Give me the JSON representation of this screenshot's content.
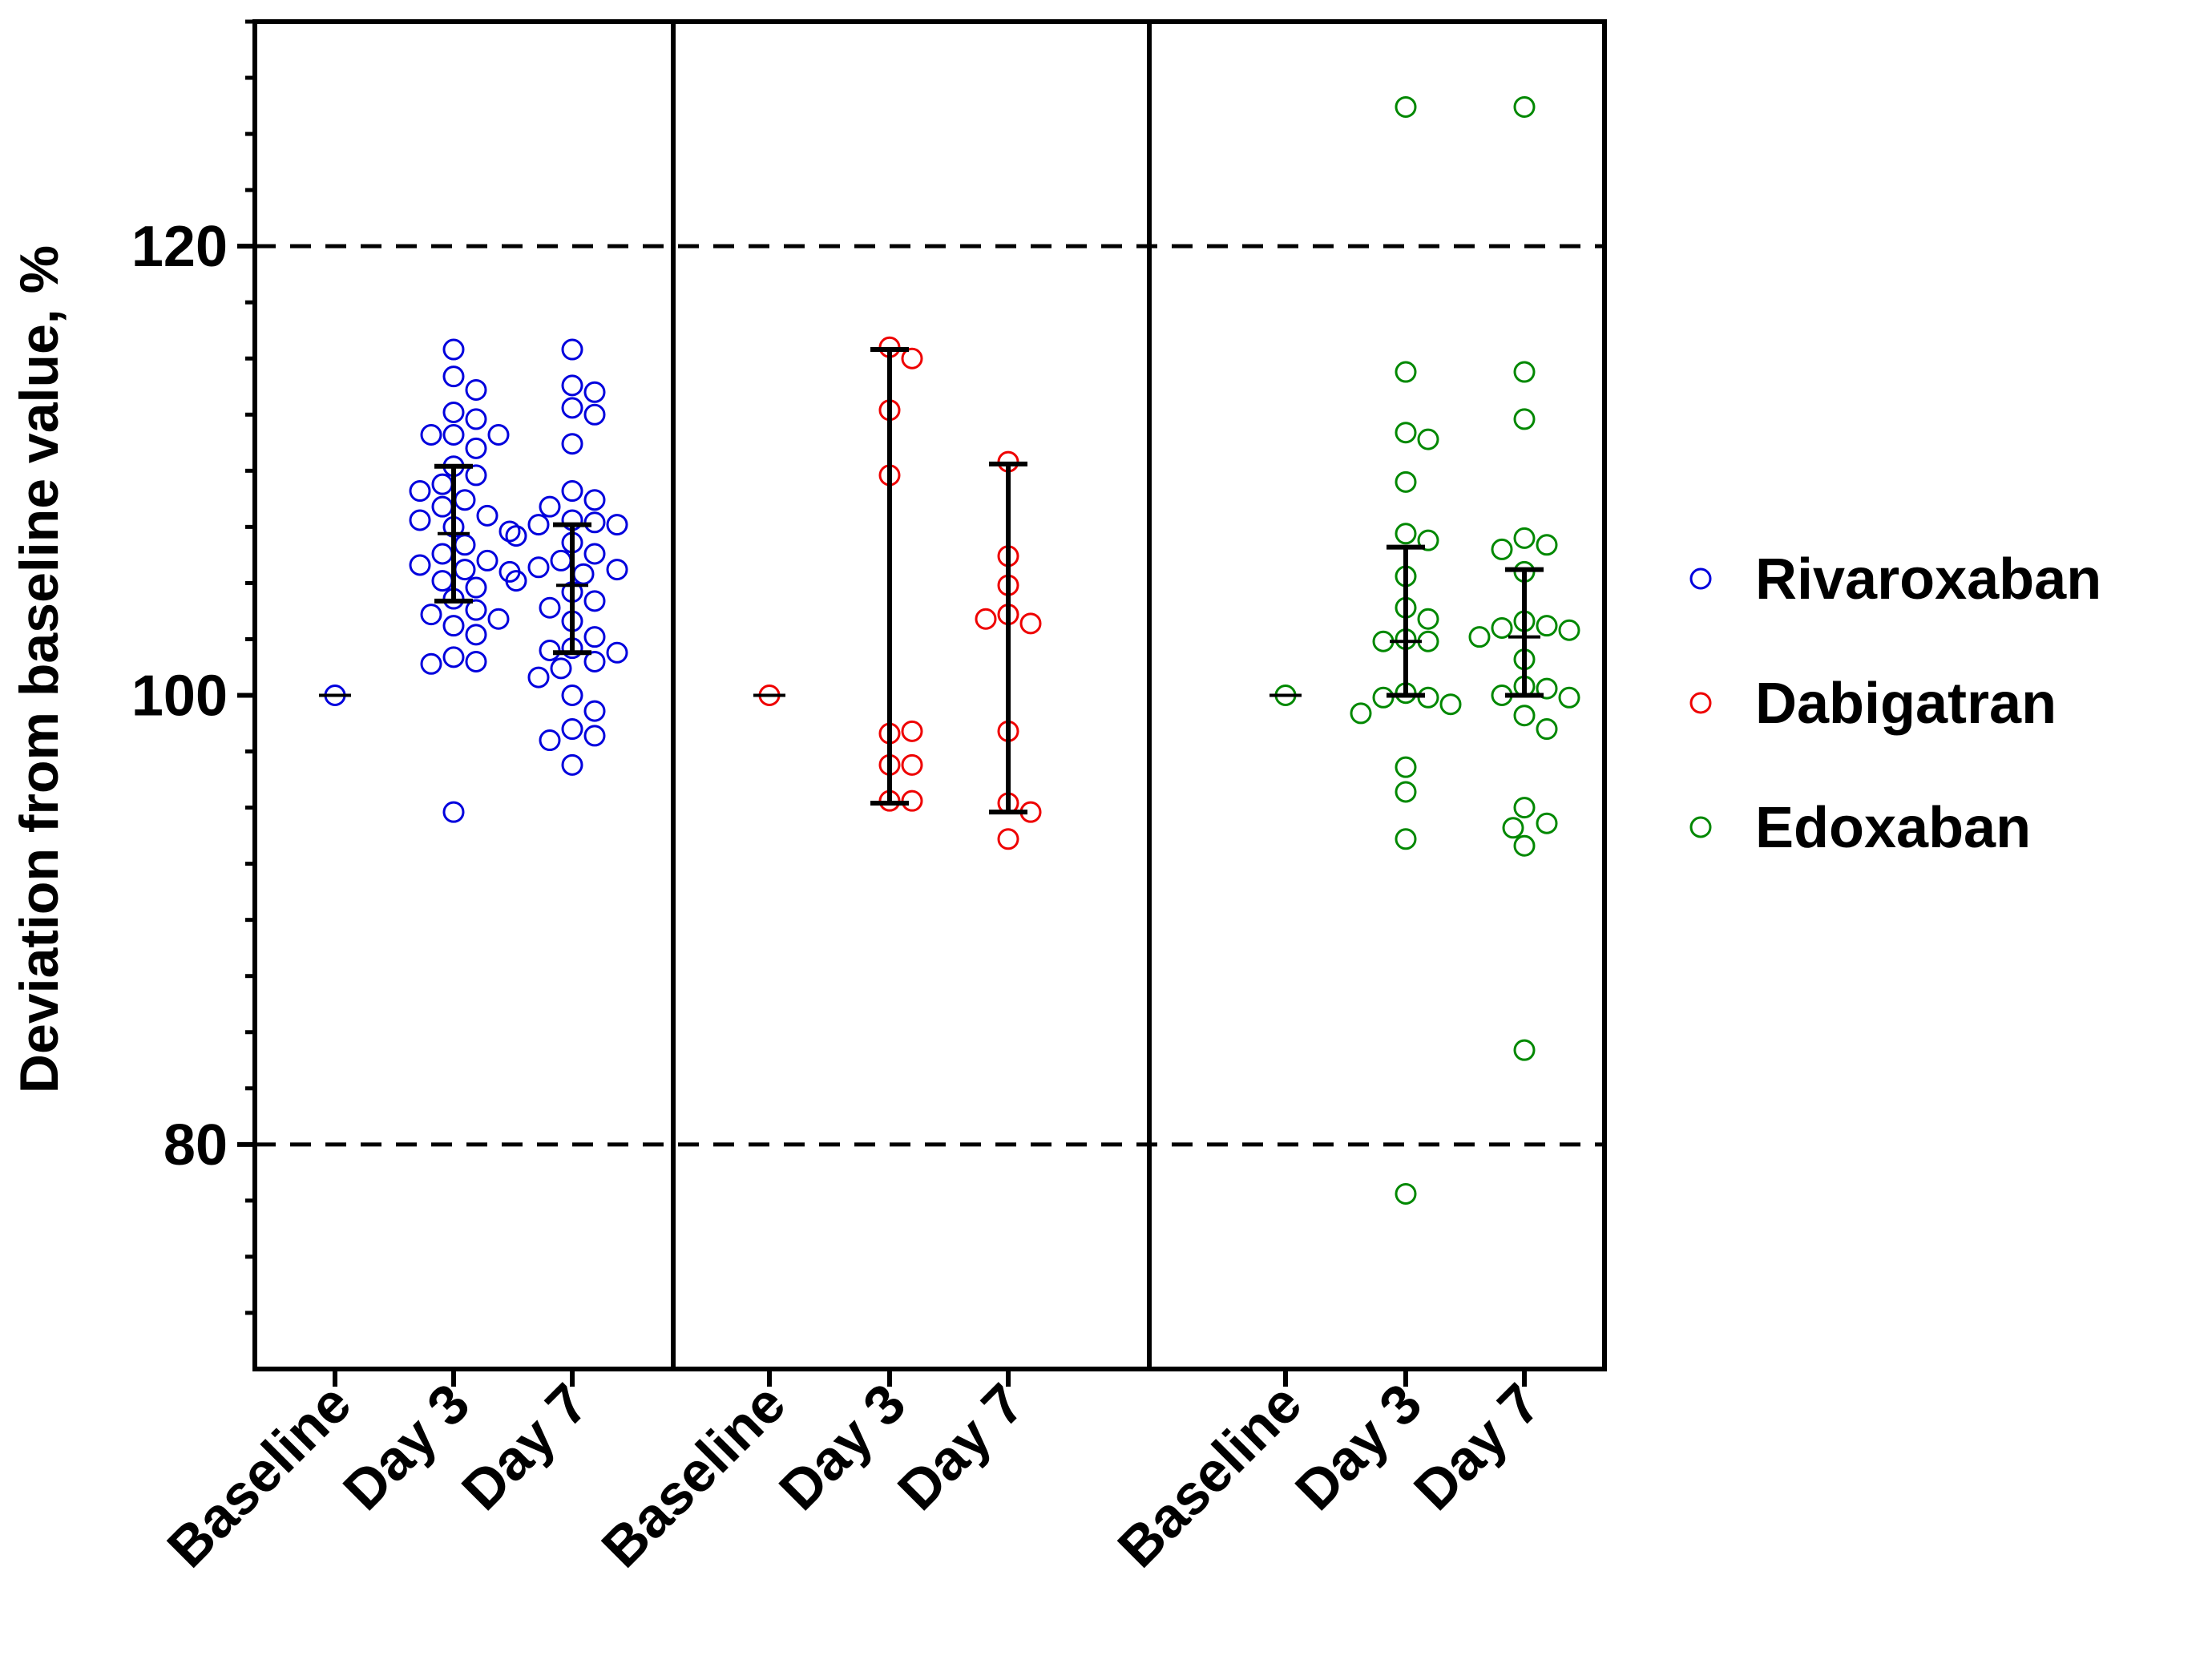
{
  "chart_data": {
    "type": "scatter",
    "ylabel": "Deviation from baseline value, %",
    "ylim": [
      70,
      130
    ],
    "yticks": [
      "80",
      "100",
      "120"
    ],
    "reference_lines": [
      80,
      120
    ],
    "legend": [
      {
        "name": "Rivaroxaban",
        "color": "#0000dd"
      },
      {
        "name": "Dabigatran",
        "color": "#ee0000"
      },
      {
        "name": "Edoxaban",
        "color": "#008800"
      }
    ],
    "panels": [
      {
        "series": "Rivaroxaban",
        "color": "#0000dd",
        "categories": [
          "Baseline",
          "Day 3",
          "Day 7"
        ],
        "points": [
          [
            100
          ],
          [
            115.4,
            114.2,
            113.6,
            112.6,
            112.3,
            111.6,
            111.6,
            111.6,
            111.0,
            110.2,
            109.8,
            109.4,
            109.1,
            108.7,
            108.4,
            108.0,
            107.8,
            107.5,
            107.3,
            106.7,
            106.3,
            106.0,
            105.8,
            105.6,
            105.5,
            105.1,
            104.8,
            104.3,
            103.8,
            103.6,
            103.4,
            103.1,
            102.7,
            101.7,
            101.5,
            101.4,
            94.8
          ],
          [
            115.4,
            113.8,
            113.5,
            112.8,
            112.5,
            111.2,
            109.1,
            108.7,
            108.4,
            107.8,
            107.7,
            107.6,
            107.6,
            107.1,
            106.8,
            106.3,
            106.0,
            105.7,
            105.6,
            105.4,
            105.1,
            104.6,
            104.2,
            103.9,
            103.3,
            102.6,
            102.1,
            102.0,
            101.9,
            101.5,
            101.2,
            100.8,
            100.0,
            99.3,
            98.5,
            98.2,
            98.0,
            96.9
          ]
        ],
        "mean": [
          100,
          107.2,
          104.9
        ],
        "error_high": [
          null,
          110.2,
          107.6
        ],
        "error_low": [
          null,
          104.2,
          101.9
        ]
      },
      {
        "series": "Dabigatran",
        "color": "#ee0000",
        "categories": [
          "Baseline",
          "Day 3",
          "Day 7"
        ],
        "points": [
          [
            100
          ],
          [
            115.5,
            115.0,
            112.7,
            109.8,
            98.3,
            98.4,
            96.9,
            96.9,
            95.3,
            95.3
          ],
          [
            110.4,
            106.2,
            104.9,
            103.6,
            103.2,
            103.4,
            98.4,
            95.2,
            94.8,
            93.6
          ]
        ],
        "mean": [
          100,
          null,
          null
        ],
        "error_high": [
          null,
          115.4,
          110.3
        ],
        "error_low": [
          null,
          95.2,
          94.8
        ]
      },
      {
        "series": "Edoxaban",
        "color": "#008800",
        "categories": [
          "Baseline",
          "Day 3",
          "Day 7"
        ],
        "points": [
          [
            100
          ],
          [
            126.2,
            114.4,
            111.7,
            111.4,
            109.5,
            107.2,
            106.9,
            105.3,
            103.9,
            103.4,
            102.5,
            102.4,
            102.4,
            100.1,
            99.9,
            99.9,
            99.6,
            99.2,
            96.8,
            95.7,
            93.6,
            77.8
          ],
          [
            126.2,
            114.4,
            112.3,
            107.0,
            106.7,
            106.5,
            105.5,
            103.3,
            103.1,
            103.0,
            102.9,
            102.6,
            101.6,
            100.4,
            100.3,
            100.0,
            99.9,
            99.1,
            98.5,
            95.0,
            94.3,
            94.1,
            93.3,
            84.2
          ]
        ],
        "mean": [
          100,
          102.4,
          102.6
        ],
        "error_high": [
          null,
          106.6,
          105.6
        ],
        "error_low": [
          null,
          100.0,
          100.0
        ]
      }
    ]
  }
}
